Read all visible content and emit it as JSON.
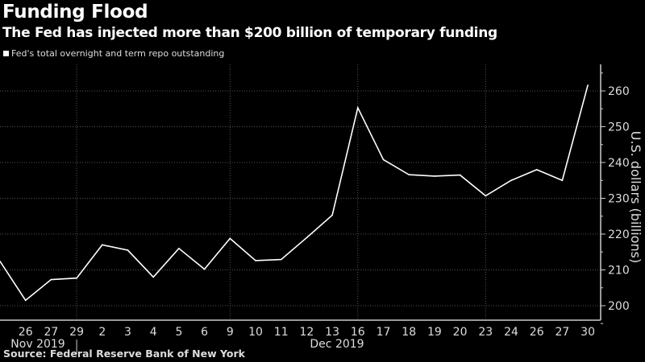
{
  "title": "Funding Flood",
  "subtitle": "The Fed has injected more than $200 billion of temporary funding",
  "source": "Source: Federal Reserve Bank of New York",
  "colors": {
    "background": "#000000",
    "line": "#ffffff",
    "grid": "#555555",
    "axis": "#cccccc"
  },
  "chart_data": {
    "type": "line",
    "title": "Funding Flood",
    "ylabel": "U.S. dollars (billions)",
    "xlabel": "",
    "categories": [
      "",
      "26",
      "27",
      "29",
      "2",
      "3",
      "4",
      "5",
      "6",
      "9",
      "10",
      "11",
      "12",
      "13",
      "16",
      "17",
      "18",
      "19",
      "20",
      "23",
      "24",
      "26",
      "27",
      "30"
    ],
    "month_labels": [
      {
        "label": "Nov 2019",
        "from": 0,
        "to": 3
      },
      {
        "label": "Dec 2019",
        "from": 4,
        "to": 23
      }
    ],
    "series": [
      {
        "name": "Fed's total overnight and term repo outstanding",
        "values": [
          212.4,
          201.5,
          207.3,
          207.7,
          217.0,
          215.5,
          208.0,
          216.0,
          210.2,
          218.8,
          212.6,
          212.9,
          219.0,
          225.3,
          255.3,
          240.8,
          236.6,
          236.2,
          236.5,
          230.7,
          235.0,
          238.0,
          235.0,
          261.6
        ]
      }
    ],
    "ylim": [
      195,
      268
    ],
    "yticks": [
      200,
      210,
      220,
      230,
      240,
      250,
      260
    ],
    "grid": true,
    "legend": "top-left"
  }
}
